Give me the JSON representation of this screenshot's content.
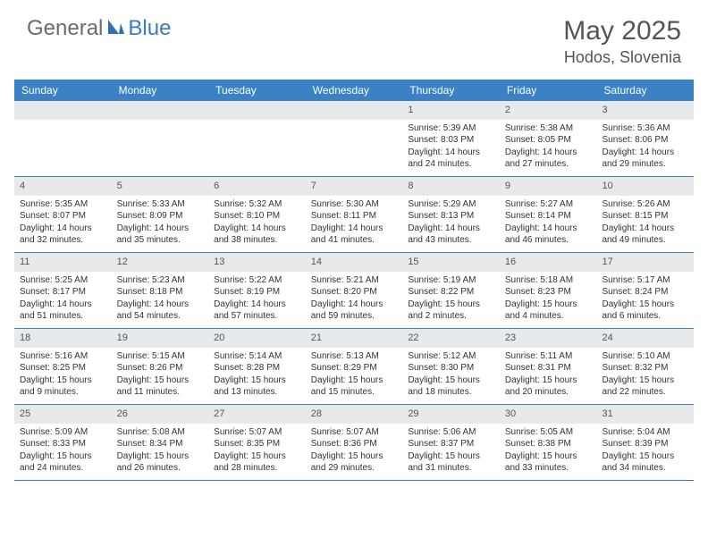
{
  "logo": {
    "general": "General",
    "blue": "Blue"
  },
  "title": "May 2025",
  "location": "Hodos, Slovenia",
  "colors": {
    "header_bg": "#3b82c4",
    "date_bg": "#e8e9ea",
    "border": "#3b82c4",
    "title_color": "#555555",
    "text_color": "#333333"
  },
  "day_names": [
    "Sunday",
    "Monday",
    "Tuesday",
    "Wednesday",
    "Thursday",
    "Friday",
    "Saturday"
  ],
  "weeks": [
    [
      null,
      null,
      null,
      null,
      {
        "d": "1",
        "sr": "5:39 AM",
        "ss": "8:03 PM",
        "dl": "14 hours and 24 minutes."
      },
      {
        "d": "2",
        "sr": "5:38 AM",
        "ss": "8:05 PM",
        "dl": "14 hours and 27 minutes."
      },
      {
        "d": "3",
        "sr": "5:36 AM",
        "ss": "8:06 PM",
        "dl": "14 hours and 29 minutes."
      }
    ],
    [
      {
        "d": "4",
        "sr": "5:35 AM",
        "ss": "8:07 PM",
        "dl": "14 hours and 32 minutes."
      },
      {
        "d": "5",
        "sr": "5:33 AM",
        "ss": "8:09 PM",
        "dl": "14 hours and 35 minutes."
      },
      {
        "d": "6",
        "sr": "5:32 AM",
        "ss": "8:10 PM",
        "dl": "14 hours and 38 minutes."
      },
      {
        "d": "7",
        "sr": "5:30 AM",
        "ss": "8:11 PM",
        "dl": "14 hours and 41 minutes."
      },
      {
        "d": "8",
        "sr": "5:29 AM",
        "ss": "8:13 PM",
        "dl": "14 hours and 43 minutes."
      },
      {
        "d": "9",
        "sr": "5:27 AM",
        "ss": "8:14 PM",
        "dl": "14 hours and 46 minutes."
      },
      {
        "d": "10",
        "sr": "5:26 AM",
        "ss": "8:15 PM",
        "dl": "14 hours and 49 minutes."
      }
    ],
    [
      {
        "d": "11",
        "sr": "5:25 AM",
        "ss": "8:17 PM",
        "dl": "14 hours and 51 minutes."
      },
      {
        "d": "12",
        "sr": "5:23 AM",
        "ss": "8:18 PM",
        "dl": "14 hours and 54 minutes."
      },
      {
        "d": "13",
        "sr": "5:22 AM",
        "ss": "8:19 PM",
        "dl": "14 hours and 57 minutes."
      },
      {
        "d": "14",
        "sr": "5:21 AM",
        "ss": "8:20 PM",
        "dl": "14 hours and 59 minutes."
      },
      {
        "d": "15",
        "sr": "5:19 AM",
        "ss": "8:22 PM",
        "dl": "15 hours and 2 minutes."
      },
      {
        "d": "16",
        "sr": "5:18 AM",
        "ss": "8:23 PM",
        "dl": "15 hours and 4 minutes."
      },
      {
        "d": "17",
        "sr": "5:17 AM",
        "ss": "8:24 PM",
        "dl": "15 hours and 6 minutes."
      }
    ],
    [
      {
        "d": "18",
        "sr": "5:16 AM",
        "ss": "8:25 PM",
        "dl": "15 hours and 9 minutes."
      },
      {
        "d": "19",
        "sr": "5:15 AM",
        "ss": "8:26 PM",
        "dl": "15 hours and 11 minutes."
      },
      {
        "d": "20",
        "sr": "5:14 AM",
        "ss": "8:28 PM",
        "dl": "15 hours and 13 minutes."
      },
      {
        "d": "21",
        "sr": "5:13 AM",
        "ss": "8:29 PM",
        "dl": "15 hours and 15 minutes."
      },
      {
        "d": "22",
        "sr": "5:12 AM",
        "ss": "8:30 PM",
        "dl": "15 hours and 18 minutes."
      },
      {
        "d": "23",
        "sr": "5:11 AM",
        "ss": "8:31 PM",
        "dl": "15 hours and 20 minutes."
      },
      {
        "d": "24",
        "sr": "5:10 AM",
        "ss": "8:32 PM",
        "dl": "15 hours and 22 minutes."
      }
    ],
    [
      {
        "d": "25",
        "sr": "5:09 AM",
        "ss": "8:33 PM",
        "dl": "15 hours and 24 minutes."
      },
      {
        "d": "26",
        "sr": "5:08 AM",
        "ss": "8:34 PM",
        "dl": "15 hours and 26 minutes."
      },
      {
        "d": "27",
        "sr": "5:07 AM",
        "ss": "8:35 PM",
        "dl": "15 hours and 28 minutes."
      },
      {
        "d": "28",
        "sr": "5:07 AM",
        "ss": "8:36 PM",
        "dl": "15 hours and 29 minutes."
      },
      {
        "d": "29",
        "sr": "5:06 AM",
        "ss": "8:37 PM",
        "dl": "15 hours and 31 minutes."
      },
      {
        "d": "30",
        "sr": "5:05 AM",
        "ss": "8:38 PM",
        "dl": "15 hours and 33 minutes."
      },
      {
        "d": "31",
        "sr": "5:04 AM",
        "ss": "8:39 PM",
        "dl": "15 hours and 34 minutes."
      }
    ]
  ],
  "labels": {
    "sunrise": "Sunrise:",
    "sunset": "Sunset:",
    "daylight": "Daylight:"
  }
}
